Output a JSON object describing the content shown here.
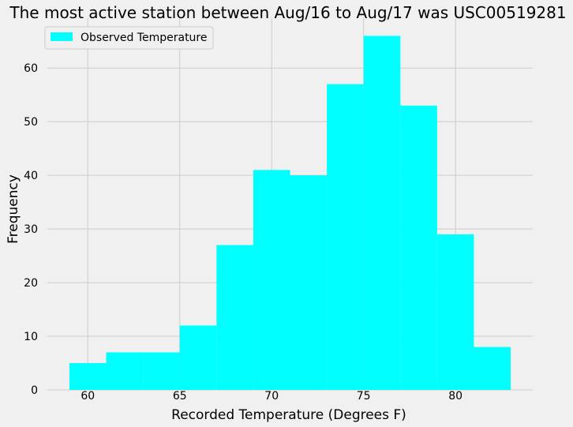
{
  "chart_data": {
    "type": "histogram",
    "title": "The most active station between Aug/16 to Aug/17 was USC00519281",
    "xlabel": "Recorded Temperature (Degrees F)",
    "ylabel": "Frequency",
    "xlim": [
      57.8,
      84.2
    ],
    "ylim": [
      0,
      69.3
    ],
    "x_ticks": [
      60,
      65,
      70,
      75,
      80
    ],
    "y_ticks": [
      0,
      10,
      20,
      30,
      40,
      50,
      60
    ],
    "grid": true,
    "legend": {
      "position": "top-left",
      "entries": [
        "Observed Temperature"
      ]
    },
    "series": [
      {
        "name": "Observed Temperature",
        "color": "#00ffff",
        "bins": [
          {
            "start": 59,
            "end": 61,
            "count": 5
          },
          {
            "start": 61,
            "end": 63,
            "count": 7
          },
          {
            "start": 63,
            "end": 65,
            "count": 7
          },
          {
            "start": 65,
            "end": 67,
            "count": 12
          },
          {
            "start": 67,
            "end": 69,
            "count": 27
          },
          {
            "start": 69,
            "end": 71,
            "count": 41
          },
          {
            "start": 71,
            "end": 73,
            "count": 40
          },
          {
            "start": 73,
            "end": 75,
            "count": 57
          },
          {
            "start": 75,
            "end": 77,
            "count": 66
          },
          {
            "start": 77,
            "end": 79,
            "count": 53
          },
          {
            "start": 79,
            "end": 81,
            "count": 29
          },
          {
            "start": 81,
            "end": 83,
            "count": 8
          }
        ]
      }
    ]
  }
}
